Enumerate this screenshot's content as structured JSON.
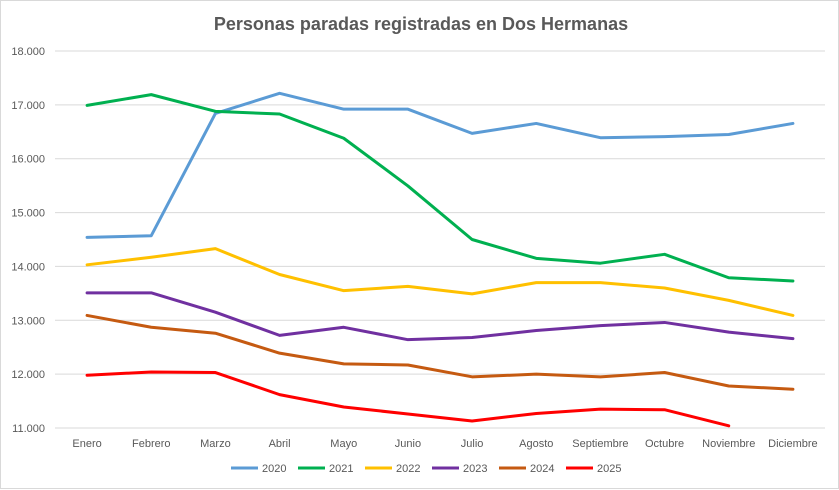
{
  "chart_data": {
    "type": "line",
    "title": "Personas paradas registradas en Dos Hermanas",
    "xlabel": "",
    "ylabel": "",
    "ylim": [
      11000,
      18000
    ],
    "yticks": [
      11000,
      12000,
      13000,
      14000,
      15000,
      16000,
      17000,
      18000
    ],
    "ytick_labels": [
      "11.000",
      "12.000",
      "13.000",
      "14.000",
      "15.000",
      "16.000",
      "17.000",
      "18.000"
    ],
    "grid": true,
    "legend_position": "bottom",
    "categories": [
      "Enero",
      "Febrero",
      "Marzo",
      "Abril",
      "Mayo",
      "Junio",
      "Julio",
      "Agosto",
      "Septiembre",
      "Octubre",
      "Noviembre",
      "Diciembre"
    ],
    "series": [
      {
        "name": "2020",
        "color": "#5b9bd5",
        "values": [
          14540,
          14570,
          16840,
          17215,
          16920,
          16920,
          16470,
          16655,
          16390,
          16410,
          16450,
          16655
        ]
      },
      {
        "name": "2021",
        "color": "#00b050",
        "values": [
          16990,
          17190,
          16880,
          16830,
          16380,
          15495,
          14500,
          14150,
          14060,
          14225,
          13790,
          13730
        ]
      },
      {
        "name": "2022",
        "color": "#ffc000",
        "values": [
          14030,
          14170,
          14330,
          13850,
          13550,
          13630,
          13490,
          13700,
          13700,
          13600,
          13370,
          13090
        ]
      },
      {
        "name": "2023",
        "color": "#7030a0",
        "values": [
          13510,
          13510,
          13150,
          12720,
          12870,
          12640,
          12680,
          12810,
          12900,
          12960,
          12780,
          12660
        ]
      },
      {
        "name": "2024",
        "color": "#c55a11",
        "values": [
          13090,
          12870,
          12760,
          12390,
          12190,
          12170,
          11950,
          12000,
          11950,
          12030,
          11780,
          11720
        ]
      },
      {
        "name": "2025",
        "color": "#ff0000",
        "values": [
          11980,
          12040,
          12030,
          11620,
          11390,
          11260,
          11130,
          11270,
          11350,
          11340,
          11040,
          null
        ]
      }
    ]
  }
}
